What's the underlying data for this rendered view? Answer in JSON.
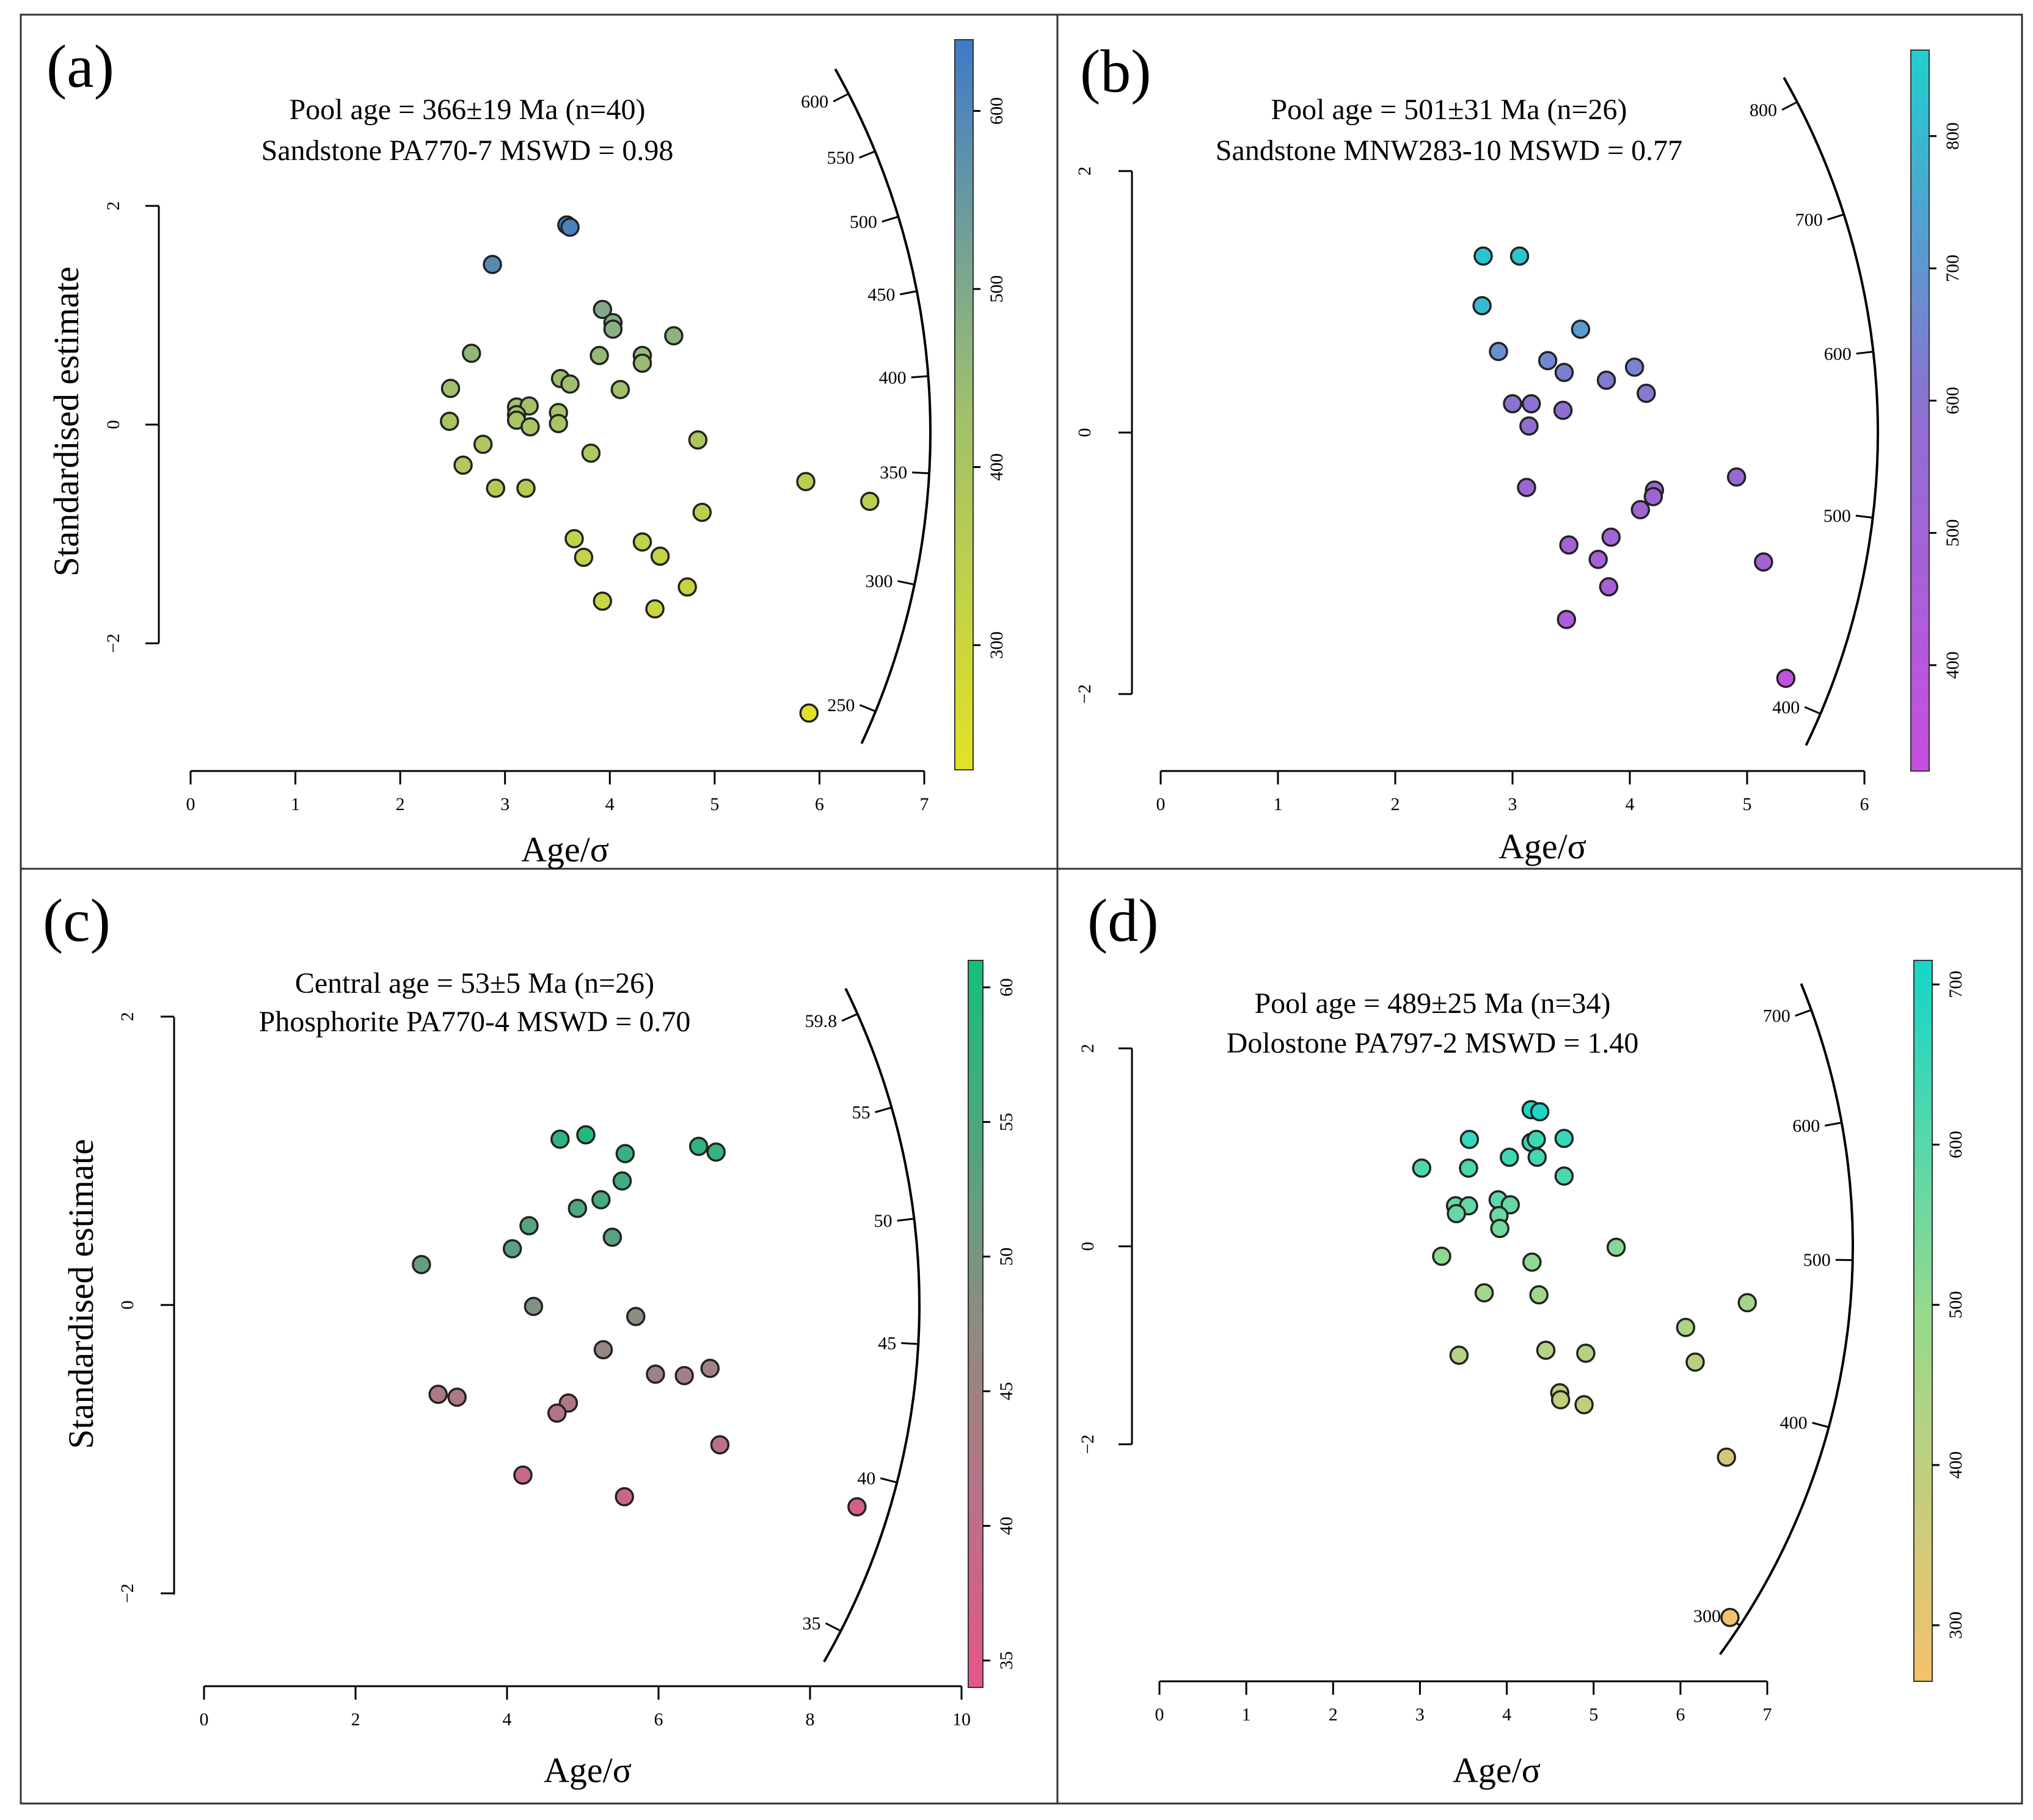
{
  "chart_data": [
    {
      "type": "scatter",
      "panel_label": "(a)",
      "title_line1": "Pool age = 366±19 Ma (n=40)",
      "title_line2": "Sandstone PA770-7  MSWD = 0.98",
      "xlabel": "Age/σ",
      "ylabel": "Standardised estimate",
      "xlim": [
        0,
        7
      ],
      "xticks": [
        "0",
        "1",
        "2",
        "3",
        "4",
        "5",
        "6",
        "7"
      ],
      "yticks": [
        {
          "v": 2,
          "t": "2"
        },
        {
          "v": 0,
          "t": "0"
        },
        {
          "v": -2,
          "t": "−2"
        }
      ],
      "radial_ticks": [
        {
          "v": 250,
          "t": "250"
        },
        {
          "v": 300,
          "t": "300"
        },
        {
          "v": 350,
          "t": "350"
        },
        {
          "v": 400,
          "t": "400"
        },
        {
          "v": 450,
          "t": "450"
        },
        {
          "v": 500,
          "t": "500"
        },
        {
          "v": 550,
          "t": "550"
        },
        {
          "v": 600,
          "t": "600"
        }
      ],
      "colorbar": {
        "min": 230,
        "max": 640,
        "ticks": [
          300,
          400,
          500,
          600
        ],
        "colors": [
          "#e3e224",
          "#9ebf6e",
          "#3e7ac8"
        ]
      },
      "points": [
        {
          "x": 3.59,
          "y": 1.82,
          "age": 620
        },
        {
          "x": 3.62,
          "y": 1.8,
          "age": 615
        },
        {
          "x": 2.88,
          "y": 1.46,
          "age": 590
        },
        {
          "x": 3.93,
          "y": 1.05,
          "age": 500
        },
        {
          "x": 4.03,
          "y": 0.93,
          "age": 488
        },
        {
          "x": 4.03,
          "y": 0.87,
          "age": 480
        },
        {
          "x": 4.61,
          "y": 0.81,
          "age": 470
        },
        {
          "x": 2.68,
          "y": 0.65,
          "age": 460
        },
        {
          "x": 3.9,
          "y": 0.63,
          "age": 452
        },
        {
          "x": 4.31,
          "y": 0.63,
          "age": 448
        },
        {
          "x": 4.31,
          "y": 0.56,
          "age": 445
        },
        {
          "x": 3.53,
          "y": 0.42,
          "age": 440
        },
        {
          "x": 3.62,
          "y": 0.37,
          "age": 436
        },
        {
          "x": 2.48,
          "y": 0.33,
          "age": 432
        },
        {
          "x": 4.1,
          "y": 0.32,
          "age": 428
        },
        {
          "x": 3.11,
          "y": 0.16,
          "age": 418
        },
        {
          "x": 3.23,
          "y": 0.17,
          "age": 416
        },
        {
          "x": 3.11,
          "y": 0.09,
          "age": 412
        },
        {
          "x": 3.51,
          "y": 0.11,
          "age": 410
        },
        {
          "x": 3.11,
          "y": 0.04,
          "age": 406
        },
        {
          "x": 2.47,
          "y": 0.03,
          "age": 404
        },
        {
          "x": 3.51,
          "y": 0.01,
          "age": 402
        },
        {
          "x": 3.24,
          "y": -0.02,
          "age": 399
        },
        {
          "x": 4.84,
          "y": -0.14,
          "age": 392
        },
        {
          "x": 2.79,
          "y": -0.18,
          "age": 390
        },
        {
          "x": 3.82,
          "y": -0.26,
          "age": 385
        },
        {
          "x": 2.6,
          "y": -0.37,
          "age": 380
        },
        {
          "x": 2.91,
          "y": -0.58,
          "age": 368
        },
        {
          "x": 3.2,
          "y": -0.58,
          "age": 366
        },
        {
          "x": 5.87,
          "y": -0.52,
          "age": 355
        },
        {
          "x": 6.48,
          "y": -0.7,
          "age": 350
        },
        {
          "x": 4.88,
          "y": -0.8,
          "age": 345
        },
        {
          "x": 3.66,
          "y": -1.04,
          "age": 332
        },
        {
          "x": 4.31,
          "y": -1.07,
          "age": 330
        },
        {
          "x": 3.75,
          "y": -1.21,
          "age": 326
        },
        {
          "x": 4.48,
          "y": -1.2,
          "age": 325
        },
        {
          "x": 4.74,
          "y": -1.48,
          "age": 315
        },
        {
          "x": 3.93,
          "y": -1.61,
          "age": 310
        },
        {
          "x": 4.43,
          "y": -1.68,
          "age": 305
        },
        {
          "x": 5.9,
          "y": -2.63,
          "age": 242
        }
      ]
    },
    {
      "type": "scatter",
      "panel_label": "(b)",
      "title_line1": "Pool age = 501±31 Ma (n=26)",
      "title_line2": "Sandstone MNW283-10  MSWD = 0.77",
      "xlabel": "Age/σ",
      "ylabel": "",
      "xlim": [
        0,
        6
      ],
      "xticks": [
        "0",
        "1",
        "2",
        "3",
        "4",
        "5",
        "6"
      ],
      "yticks": [
        {
          "v": 2,
          "t": "2"
        },
        {
          "v": 0,
          "t": "0"
        },
        {
          "v": -2,
          "t": "−2"
        }
      ],
      "radial_ticks": [
        {
          "v": 400,
          "t": "400"
        },
        {
          "v": 500,
          "t": "500"
        },
        {
          "v": 600,
          "t": "600"
        },
        {
          "v": 700,
          "t": "700"
        },
        {
          "v": 800,
          "t": "800"
        }
      ],
      "colorbar": {
        "min": 320,
        "max": 865,
        "ticks": [
          400,
          500,
          600,
          700,
          800
        ],
        "colors": [
          "#c64ee0",
          "#8d6fd0",
          "#1fcfcf"
        ]
      },
      "points": [
        {
          "x": 2.75,
          "y": 1.35,
          "age": 840
        },
        {
          "x": 3.06,
          "y": 1.35,
          "age": 835
        },
        {
          "x": 2.74,
          "y": 0.97,
          "age": 800
        },
        {
          "x": 3.58,
          "y": 0.79,
          "age": 720
        },
        {
          "x": 2.88,
          "y": 0.62,
          "age": 690
        },
        {
          "x": 3.3,
          "y": 0.55,
          "age": 660
        },
        {
          "x": 4.04,
          "y": 0.5,
          "age": 650
        },
        {
          "x": 3.44,
          "y": 0.46,
          "age": 640
        },
        {
          "x": 3.8,
          "y": 0.4,
          "age": 630
        },
        {
          "x": 4.14,
          "y": 0.3,
          "age": 620
        },
        {
          "x": 3.0,
          "y": 0.22,
          "age": 600
        },
        {
          "x": 3.16,
          "y": 0.22,
          "age": 598
        },
        {
          "x": 3.43,
          "y": 0.17,
          "age": 590
        },
        {
          "x": 3.14,
          "y": 0.05,
          "age": 580
        },
        {
          "x": 4.91,
          "y": -0.34,
          "age": 550
        },
        {
          "x": 3.12,
          "y": -0.42,
          "age": 530
        },
        {
          "x": 4.21,
          "y": -0.44,
          "age": 525
        },
        {
          "x": 4.2,
          "y": -0.49,
          "age": 520
        },
        {
          "x": 4.09,
          "y": -0.59,
          "age": 510
        },
        {
          "x": 3.84,
          "y": -0.8,
          "age": 495
        },
        {
          "x": 3.48,
          "y": -0.86,
          "age": 488
        },
        {
          "x": 3.73,
          "y": -0.97,
          "age": 480
        },
        {
          "x": 5.14,
          "y": -0.99,
          "age": 470
        },
        {
          "x": 3.82,
          "y": -1.18,
          "age": 460
        },
        {
          "x": 3.46,
          "y": -1.43,
          "age": 440
        },
        {
          "x": 5.33,
          "y": -1.88,
          "age": 350
        }
      ]
    },
    {
      "type": "scatter",
      "panel_label": "(c)",
      "title_line1": "Central age = 53±5 Ma (n=26)",
      "title_line2": "Phosphorite  PA770-4  MSWD = 0.70",
      "xlabel": "Age/σ",
      "ylabel": "Standardised estimate",
      "xlim": [
        0,
        10
      ],
      "xticks": [
        "0",
        "2",
        "4",
        "6",
        "8",
        "10"
      ],
      "yticks": [
        {
          "v": 2,
          "t": "2"
        },
        {
          "v": 0,
          "t": "0"
        },
        {
          "v": -2,
          "t": "−2"
        }
      ],
      "radial_ticks": [
        {
          "v": 35,
          "t": "35"
        },
        {
          "v": 40,
          "t": "40"
        },
        {
          "v": 45,
          "t": "45"
        },
        {
          "v": 50,
          "t": "50"
        },
        {
          "v": 55,
          "t": "55"
        },
        {
          "v": 59.8,
          "t": "59.8"
        }
      ],
      "colorbar": {
        "min": 34,
        "max": 61,
        "ticks": [
          35,
          40,
          45,
          50,
          55,
          60
        ],
        "colors": [
          "#e8548c",
          "#8e8c80",
          "#12c07e"
        ]
      },
      "points": [
        {
          "x": 4.7,
          "y": 1.15,
          "age": 58
        },
        {
          "x": 5.04,
          "y": 1.18,
          "age": 59
        },
        {
          "x": 5.56,
          "y": 1.05,
          "age": 57
        },
        {
          "x": 6.53,
          "y": 1.1,
          "age": 57.5
        },
        {
          "x": 6.76,
          "y": 1.06,
          "age": 57
        },
        {
          "x": 5.52,
          "y": 0.86,
          "age": 56
        },
        {
          "x": 5.24,
          "y": 0.73,
          "age": 55
        },
        {
          "x": 4.93,
          "y": 0.67,
          "age": 54.5
        },
        {
          "x": 4.29,
          "y": 0.55,
          "age": 54
        },
        {
          "x": 5.39,
          "y": 0.47,
          "age": 53
        },
        {
          "x": 4.07,
          "y": 0.39,
          "age": 53
        },
        {
          "x": 2.87,
          "y": 0.28,
          "age": 52
        },
        {
          "x": 4.35,
          "y": -0.01,
          "age": 49
        },
        {
          "x": 5.7,
          "y": -0.08,
          "age": 48
        },
        {
          "x": 5.27,
          "y": -0.31,
          "age": 46
        },
        {
          "x": 6.68,
          "y": -0.44,
          "age": 45
        },
        {
          "x": 5.96,
          "y": -0.48,
          "age": 44.5
        },
        {
          "x": 6.34,
          "y": -0.49,
          "age": 44.5
        },
        {
          "x": 3.09,
          "y": -0.62,
          "age": 43
        },
        {
          "x": 3.34,
          "y": -0.64,
          "age": 43
        },
        {
          "x": 4.81,
          "y": -0.68,
          "age": 42.5
        },
        {
          "x": 4.66,
          "y": -0.75,
          "age": 42
        },
        {
          "x": 6.81,
          "y": -0.97,
          "age": 41
        },
        {
          "x": 4.21,
          "y": -1.18,
          "age": 39
        },
        {
          "x": 5.55,
          "y": -1.33,
          "age": 38
        },
        {
          "x": 8.62,
          "y": -1.4,
          "age": 37
        }
      ]
    },
    {
      "type": "scatter",
      "panel_label": "(d)",
      "title_line1": "Pool age = 489±25 Ma (n=34)",
      "title_line2": "Dolostone  PA797-2  MSWD = 1.40",
      "xlabel": "Age/σ",
      "ylabel": "",
      "xlim": [
        0,
        7
      ],
      "xticks": [
        "0",
        "1",
        "2",
        "3",
        "4",
        "5",
        "6",
        "7"
      ],
      "yticks": [
        {
          "v": 2,
          "t": "2"
        },
        {
          "v": 0,
          "t": "0"
        },
        {
          "v": -2,
          "t": "−2"
        }
      ],
      "radial_ticks": [
        {
          "v": 300,
          "t": "300"
        },
        {
          "v": 400,
          "t": "400"
        },
        {
          "v": 500,
          "t": "500"
        },
        {
          "v": 600,
          "t": "600"
        },
        {
          "v": 700,
          "t": "700"
        }
      ],
      "colorbar": {
        "min": 265,
        "max": 715,
        "ticks": [
          300,
          400,
          500,
          600,
          700
        ],
        "colors": [
          "#f5c16c",
          "#98d98c",
          "#14d6c9"
        ]
      },
      "points": [
        {
          "x": 4.28,
          "y": 1.38,
          "age": 700
        },
        {
          "x": 4.38,
          "y": 1.36,
          "age": 700
        },
        {
          "x": 3.57,
          "y": 1.08,
          "age": 660
        },
        {
          "x": 4.28,
          "y": 1.05,
          "age": 660
        },
        {
          "x": 4.34,
          "y": 1.08,
          "age": 650
        },
        {
          "x": 4.66,
          "y": 1.09,
          "age": 655
        },
        {
          "x": 4.03,
          "y": 0.9,
          "age": 640
        },
        {
          "x": 4.35,
          "y": 0.9,
          "age": 635
        },
        {
          "x": 3.02,
          "y": 0.79,
          "age": 620
        },
        {
          "x": 3.56,
          "y": 0.79,
          "age": 622
        },
        {
          "x": 4.66,
          "y": 0.71,
          "age": 618
        },
        {
          "x": 3.9,
          "y": 0.47,
          "age": 590
        },
        {
          "x": 3.41,
          "y": 0.41,
          "age": 585
        },
        {
          "x": 3.56,
          "y": 0.41,
          "age": 583
        },
        {
          "x": 4.04,
          "y": 0.42,
          "age": 580
        },
        {
          "x": 3.42,
          "y": 0.33,
          "age": 575
        },
        {
          "x": 3.91,
          "y": 0.31,
          "age": 570
        },
        {
          "x": 3.92,
          "y": 0.18,
          "age": 555
        },
        {
          "x": 5.26,
          "y": -0.01,
          "age": 520
        },
        {
          "x": 3.25,
          "y": -0.1,
          "age": 510
        },
        {
          "x": 4.29,
          "y": -0.16,
          "age": 505
        },
        {
          "x": 3.74,
          "y": -0.47,
          "age": 470
        },
        {
          "x": 4.37,
          "y": -0.49,
          "age": 468
        },
        {
          "x": 6.77,
          "y": -0.57,
          "age": 460
        },
        {
          "x": 6.06,
          "y": -0.82,
          "age": 440
        },
        {
          "x": 3.45,
          "y": -1.1,
          "age": 420
        },
        {
          "x": 4.45,
          "y": -1.05,
          "age": 425
        },
        {
          "x": 4.91,
          "y": -1.08,
          "age": 420
        },
        {
          "x": 6.17,
          "y": -1.17,
          "age": 410
        },
        {
          "x": 4.61,
          "y": -1.48,
          "age": 390
        },
        {
          "x": 4.62,
          "y": -1.55,
          "age": 385
        },
        {
          "x": 4.89,
          "y": -1.6,
          "age": 380
        },
        {
          "x": 6.53,
          "y": -2.13,
          "age": 350
        },
        {
          "x": 6.57,
          "y": -3.75,
          "age": 275
        }
      ]
    }
  ]
}
